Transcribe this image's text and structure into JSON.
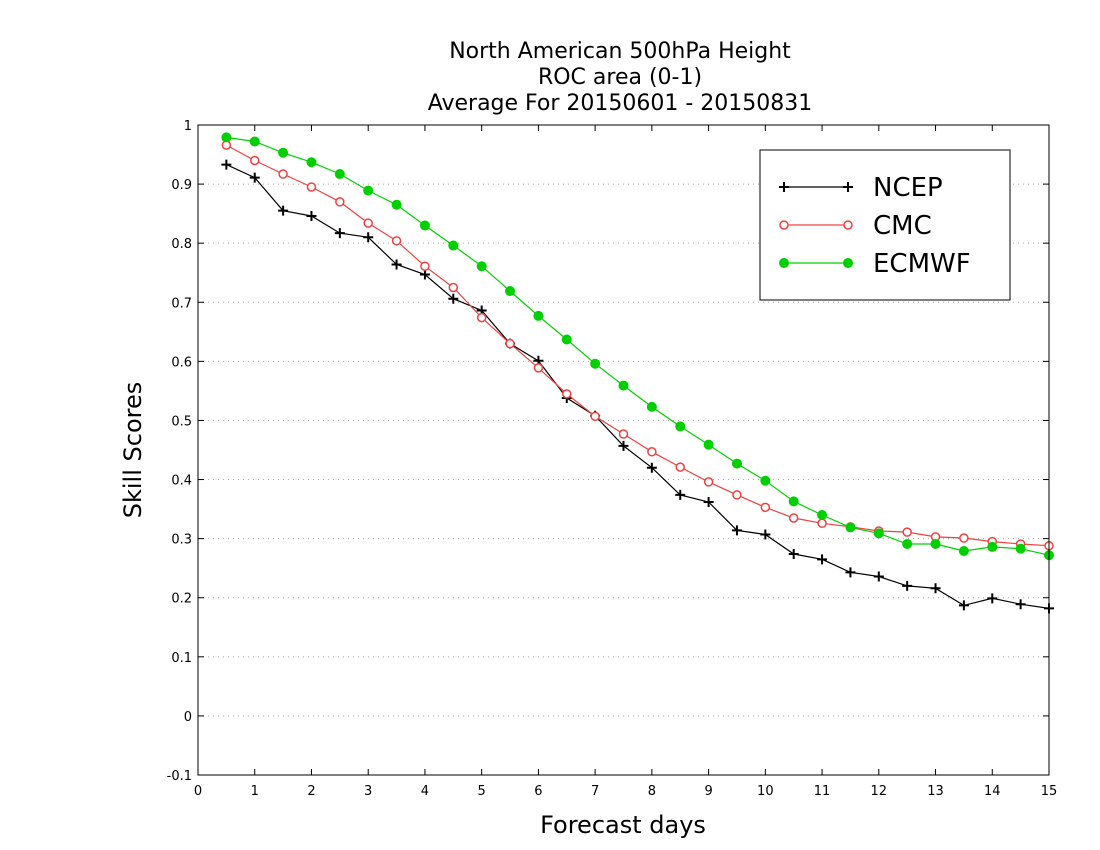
{
  "chart_data": {
    "type": "line",
    "title_lines": [
      "North American 500hPa Height",
      "ROC area (0-1)",
      "Average For 20150601 - 20150831"
    ],
    "xlabel": "Forecast days",
    "ylabel": "Skill Scores",
    "xlim": [
      0,
      15
    ],
    "ylim": [
      -0.1,
      1
    ],
    "x_ticks": [
      0,
      1,
      2,
      3,
      4,
      5,
      6,
      7,
      8,
      9,
      10,
      11,
      12,
      13,
      14,
      15
    ],
    "y_ticks": [
      -0.1,
      0,
      0.1,
      0.2,
      0.3,
      0.4,
      0.5,
      0.6,
      0.7,
      0.8,
      0.9,
      1
    ],
    "y_tick_labels": [
      "-0.1",
      "0",
      "0.1",
      "0.2",
      "0.3",
      "0.4",
      "0.5",
      "0.6",
      "0.7",
      "0.8",
      "0.9",
      "1"
    ],
    "grid": "horizontal dotted",
    "legend_position": "top-right",
    "x": [
      0.5,
      1,
      1.5,
      2,
      2.5,
      3,
      3.5,
      4,
      4.5,
      5,
      5.5,
      6,
      6.5,
      7,
      7.5,
      8,
      8.5,
      9,
      9.5,
      10,
      10.5,
      11,
      11.5,
      12,
      12.5,
      13,
      13.5,
      14,
      14.5,
      15
    ],
    "series": [
      {
        "name": "NCEP",
        "color": "#000000",
        "marker": "plus",
        "values": [
          0.933,
          0.911,
          0.855,
          0.846,
          0.817,
          0.81,
          0.764,
          0.747,
          0.706,
          0.686,
          0.63,
          0.601,
          0.538,
          0.508,
          0.457,
          0.42,
          0.374,
          0.362,
          0.314,
          0.307,
          0.274,
          0.265,
          0.243,
          0.236,
          0.22,
          0.216,
          0.187,
          0.199,
          0.189,
          0.182
        ]
      },
      {
        "name": "CMC",
        "color": "#f04040",
        "marker": "open-circle",
        "values": [
          0.966,
          0.94,
          0.917,
          0.895,
          0.87,
          0.834,
          0.804,
          0.761,
          0.725,
          0.674,
          0.63,
          0.589,
          0.545,
          0.507,
          0.477,
          0.447,
          0.421,
          0.396,
          0.374,
          0.353,
          0.335,
          0.326,
          0.32,
          0.313,
          0.311,
          0.303,
          0.301,
          0.295,
          0.291,
          0.288
        ]
      },
      {
        "name": "ECMWF",
        "color": "#00d000",
        "marker": "filled-circle",
        "values": [
          0.979,
          0.972,
          0.953,
          0.937,
          0.917,
          0.889,
          0.865,
          0.83,
          0.796,
          0.761,
          0.719,
          0.677,
          0.637,
          0.596,
          0.559,
          0.523,
          0.49,
          0.459,
          0.427,
          0.398,
          0.363,
          0.34,
          0.319,
          0.309,
          0.291,
          0.291,
          0.279,
          0.286,
          0.283,
          0.272
        ]
      }
    ]
  }
}
